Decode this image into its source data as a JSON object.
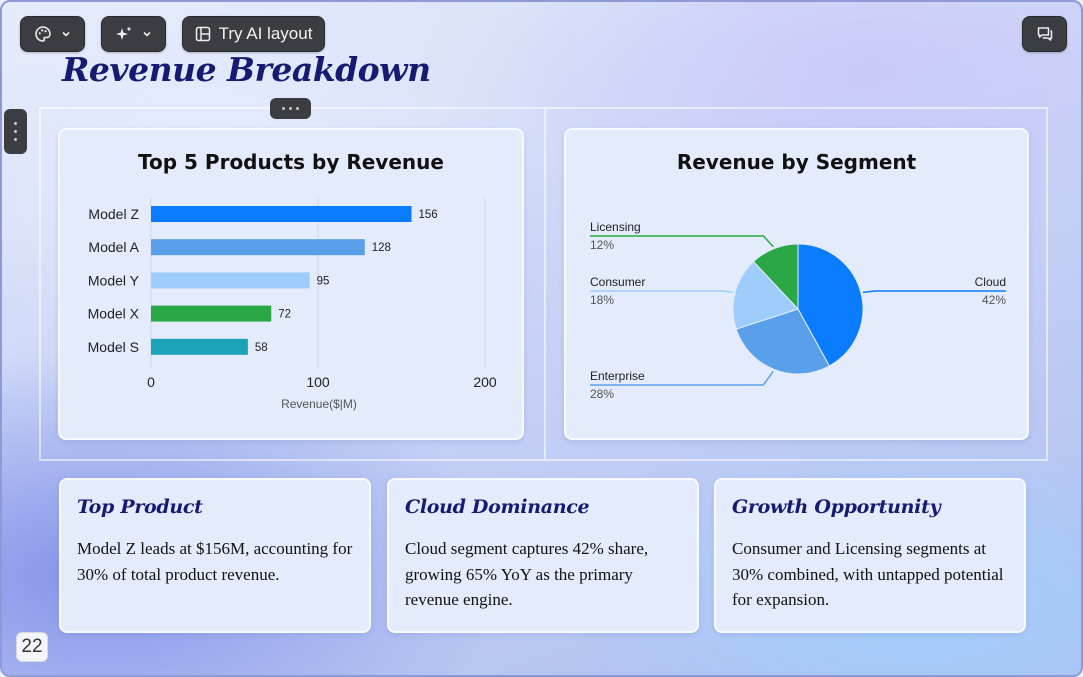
{
  "toolbar": {
    "theme_icon": "palette-icon",
    "magic_icon": "sparkles-icon",
    "ai_layout_label": "Try AI layout",
    "ai_layout_icon": "layout-icon",
    "comments_icon": "comments-icon"
  },
  "slide": {
    "title": "Revenue Breakdown",
    "page_number": "22"
  },
  "colors": {
    "title": "#161a70",
    "blue": "#0a7cff",
    "mid_blue": "#5a9fea",
    "light_blue": "#9fcdfb",
    "green": "#2aa845",
    "teal": "#1aa3b6"
  },
  "chart_data": [
    {
      "type": "bar",
      "orientation": "horizontal",
      "title": "Top 5 Products by Revenue",
      "categories": [
        "Model Z",
        "Model A",
        "Model Y",
        "Model X",
        "Model S"
      ],
      "values": [
        156,
        128,
        95,
        72,
        58
      ],
      "data_labels": [
        "156",
        "128",
        "95",
        "72",
        "58"
      ],
      "colors": [
        "#0a7cff",
        "#5a9fea",
        "#9fcdfb",
        "#2aa845",
        "#1aa3b6"
      ],
      "xlabel": "Revenue($|M)",
      "ylabel": "",
      "xlim": [
        0,
        200
      ],
      "xticks": [
        "0",
        "100",
        "200"
      ],
      "grid": true
    },
    {
      "type": "pie",
      "title": "Revenue by Segment",
      "slices": [
        {
          "label": "Cloud",
          "pct_label": "42%",
          "value": 42,
          "color": "#0a7cff",
          "side": "right"
        },
        {
          "label": "Enterprise",
          "pct_label": "28%",
          "value": 28,
          "color": "#5a9fea",
          "side": "left"
        },
        {
          "label": "Consumer",
          "pct_label": "18%",
          "value": 18,
          "color": "#9fcdfb",
          "side": "left"
        },
        {
          "label": "Licensing",
          "pct_label": "12%",
          "value": 12,
          "color": "#2aa845",
          "side": "left"
        }
      ]
    }
  ],
  "insights": [
    {
      "title": "Top Product",
      "text": "Model Z leads at $156M, accounting for 30% of total product revenue."
    },
    {
      "title": "Cloud Dominance",
      "text": "Cloud segment captures 42% share, growing 65% YoY as the primary revenue engine."
    },
    {
      "title": "Growth Opportunity",
      "text": "Consumer and Licensing segments at 30% combined, with untapped potential for expansion."
    }
  ]
}
